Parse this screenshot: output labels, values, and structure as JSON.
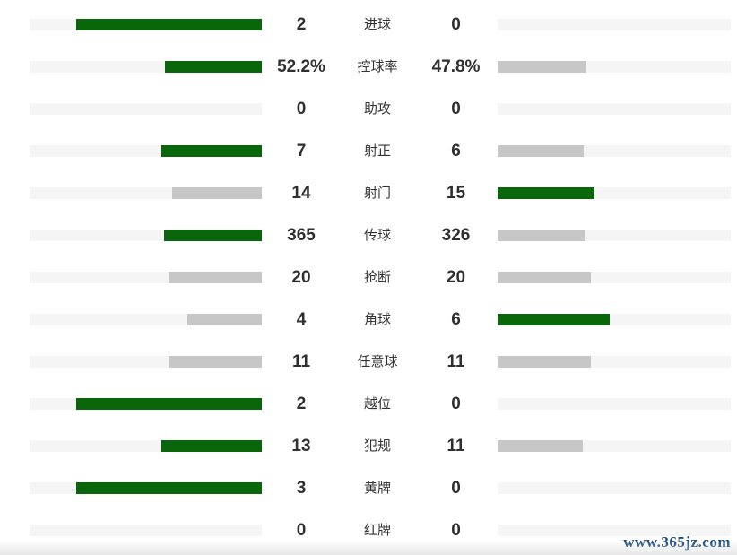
{
  "colors": {
    "bar_green": "#0a660a",
    "bar_gray": "#c7c7c7",
    "bar_track": "#f5f5f5",
    "value_text": "#2f2f2f",
    "label_text": "#333333",
    "watermark_blue": "#1b4b80"
  },
  "watermark": {
    "text": "www.365jz.com"
  },
  "chart_data": {
    "type": "bar",
    "subtype": "paired-horizontal-stat-comparison",
    "title": "",
    "legend": false,
    "grid": false,
    "axes": false,
    "categories": [
      "进球",
      "控球率",
      "助攻",
      "射正",
      "射门",
      "传球",
      "抢断",
      "角球",
      "任意球",
      "越位",
      "犯规",
      "黄牌",
      "红牌"
    ],
    "series": [
      {
        "name": "home",
        "side": "left",
        "values": [
          2,
          52.2,
          0,
          7,
          14,
          365,
          20,
          4,
          11,
          2,
          13,
          3,
          0
        ],
        "display": [
          "2",
          "52.2%",
          "0",
          "7",
          "14",
          "365",
          "20",
          "4",
          "11",
          "2",
          "13",
          "3",
          "0"
        ]
      },
      {
        "name": "away",
        "side": "right",
        "values": [
          0,
          47.8,
          0,
          6,
          15,
          326,
          20,
          6,
          11,
          0,
          11,
          0,
          0
        ],
        "display": [
          "0",
          "47.8%",
          "0",
          "6",
          "15",
          "326",
          "20",
          "6",
          "11",
          "0",
          "11",
          "0",
          "0"
        ]
      }
    ],
    "bar_scaling": "fill_percent = 80 * value / (home + away); 0 when both values are 0",
    "color_rule": "higher value bar is green, lower or tied bar is gray, bars grow outward from center"
  }
}
